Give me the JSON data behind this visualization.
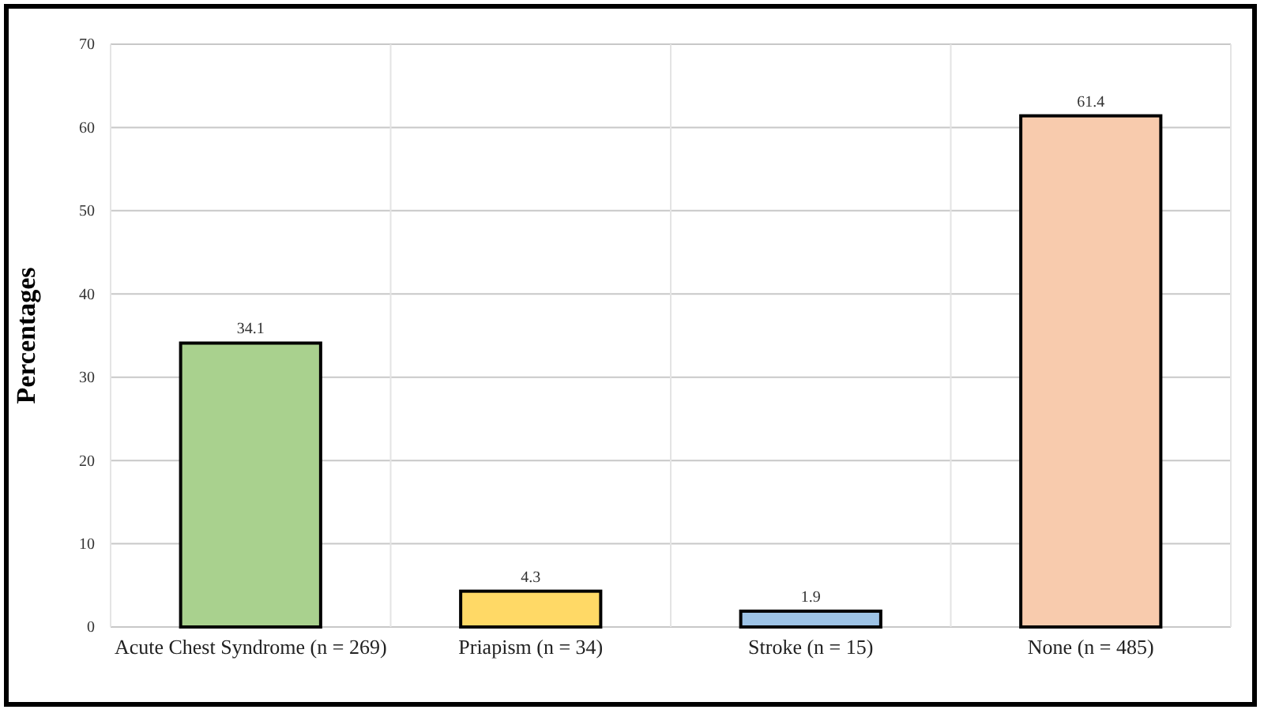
{
  "chart_data": {
    "type": "bar",
    "ylabel": "Percentages",
    "categories": [
      "Acute Chest Syndrome (n = 269)",
      "Priapism (n = 34)",
      "Stroke (n = 15)",
      "None (n = 485)"
    ],
    "values": [
      34.1,
      4.3,
      1.9,
      61.4
    ],
    "colors": [
      "#a9d18e",
      "#ffd966",
      "#9dc3e6",
      "#f8cbad"
    ],
    "ylim": [
      0,
      70
    ],
    "yticks": [
      0,
      10,
      20,
      30,
      40,
      50,
      60,
      70
    ],
    "grid": true,
    "data_labels": true
  }
}
